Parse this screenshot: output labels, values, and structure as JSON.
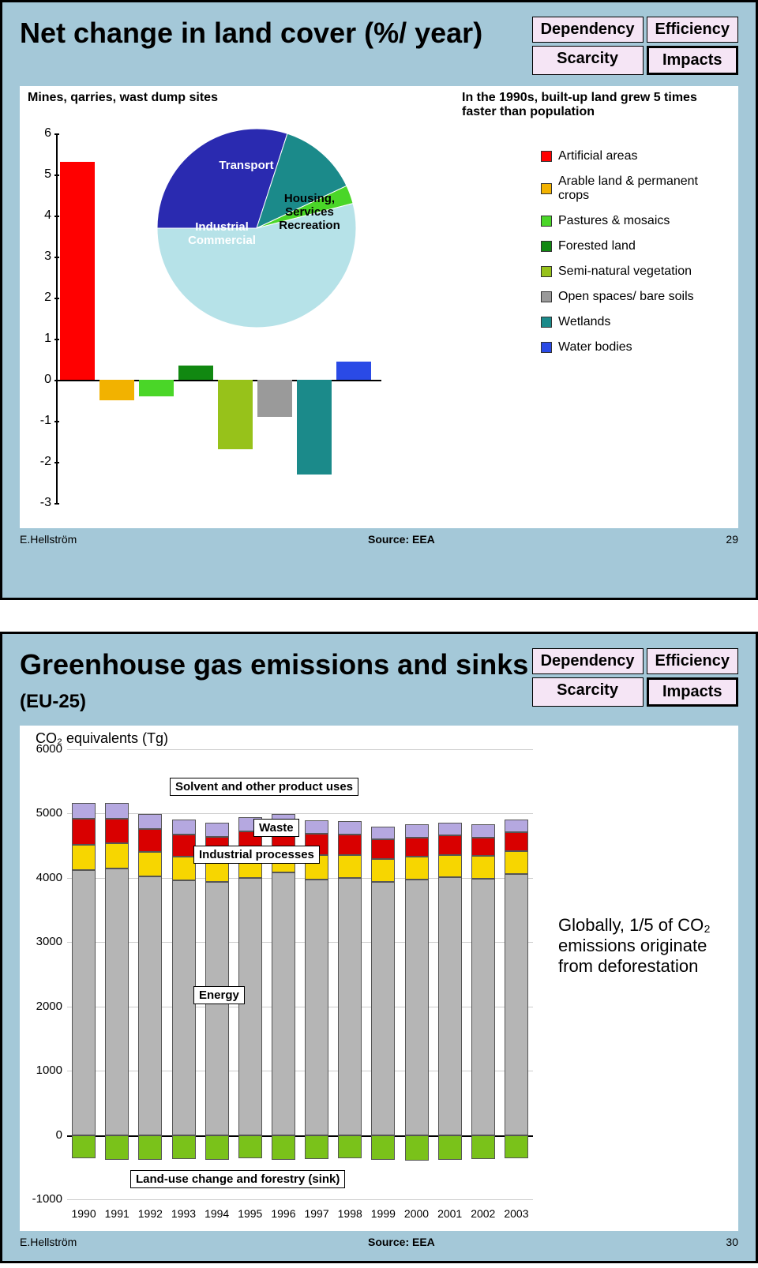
{
  "slide1": {
    "title": "Net change in land cover (%/ year)",
    "matrix": {
      "topLeft": "Dependency",
      "topRight": "Efficiency",
      "bottomLeft": "Scarcity",
      "bottomRight": "Impacts"
    },
    "topLeftLabel": "Mines, qarries, wast dump sites",
    "topRightLabel": "In the 1990s, built-up land grew 5 times faster than population",
    "bar_chart": {
      "ymin": -3,
      "ymax": 6,
      "ystep": 1,
      "categories": [
        "Artificial areas",
        "Arable land & permanent crops",
        "Pastures & mosaics",
        "Forested land",
        "Semi-natural vegetation",
        "Open spaces/ bare soils",
        "Wetlands",
        "Water bodies"
      ],
      "values": [
        5.3,
        -0.5,
        -0.4,
        0.35,
        -1.7,
        -0.9,
        -2.3,
        0.45
      ],
      "colors": [
        "#ff0000",
        "#f2b200",
        "#4ad628",
        "#118811",
        "#97c21a",
        "#9a9a9a",
        "#1b8a8a",
        "#2a4ae6"
      ]
    },
    "legend": [
      {
        "label": "Artificial areas",
        "color": "#ff0000"
      },
      {
        "label": "Arable land & permanent crops",
        "color": "#f2b200"
      },
      {
        "label": "Pastures & mosaics",
        "color": "#4ad628"
      },
      {
        "label": "Forested land",
        "color": "#118811"
      },
      {
        "label": "Semi-natural vegetation",
        "color": "#97c21a"
      },
      {
        "label": "Open spaces/ bare soils",
        "color": "#9a9a9a"
      },
      {
        "label": "Wetlands",
        "color": "#1b8a8a"
      },
      {
        "label": "Water bodies",
        "color": "#2a4ae6"
      }
    ],
    "pie": {
      "slices": [
        {
          "label": "Industrial Commercial",
          "value": 30,
          "color": "#2a2ab0"
        },
        {
          "label": "Transport",
          "value": 13,
          "color": "#1b8a8a"
        },
        {
          "label": "",
          "value": 3,
          "color": "#4ad628"
        },
        {
          "label": "Housing, Services Recreation",
          "value": 54,
          "color": "#b6e2e8"
        }
      ]
    },
    "source": "Source: EEA",
    "author": "E.Hellström",
    "page": "29"
  },
  "slide2": {
    "title": "Greenhouse gas emissions and sinks",
    "titleSuffix": "(EU-25)",
    "matrix": {
      "topLeft": "Dependency",
      "topRight": "Efficiency",
      "bottomLeft": "Scarcity",
      "bottomRight": "Impacts"
    },
    "ytitle": "CO₂ equivalents (Tg)",
    "sideNote": "Globally, 1/5 of CO₂ emissions originate from deforestation",
    "ymin": -1000,
    "ymax": 6000,
    "ystep": 1000,
    "years": [
      "1990",
      "1991",
      "1992",
      "1993",
      "1994",
      "1995",
      "1996",
      "1997",
      "1998",
      "1999",
      "2000",
      "2001",
      "2002",
      "2003"
    ],
    "series": [
      {
        "name": "Energy",
        "color": "#b5b5b5",
        "values": [
          4120,
          4150,
          4020,
          3960,
          3940,
          4000,
          4080,
          3980,
          4000,
          3940,
          3970,
          4010,
          3990,
          4060
        ]
      },
      {
        "name": "Industrial processes",
        "color": "#f7d600",
        "values": [
          400,
          390,
          380,
          370,
          360,
          380,
          370,
          380,
          360,
          350,
          360,
          350,
          350,
          360
        ]
      },
      {
        "name": "Waste",
        "color": "#d90000",
        "values": [
          400,
          380,
          360,
          350,
          340,
          340,
          330,
          330,
          320,
          310,
          300,
          300,
          290,
          290
        ]
      },
      {
        "name": "Solvent and other product uses",
        "color": "#b5a8e0",
        "values": [
          250,
          240,
          230,
          230,
          220,
          220,
          210,
          210,
          200,
          200,
          200,
          200,
          200,
          200
        ]
      }
    ],
    "sink": {
      "name": "Land-use change and forestry (sink)",
      "color": "#7ac21a",
      "values": [
        -360,
        -380,
        -380,
        -370,
        -380,
        -360,
        -390,
        -370,
        -360,
        -390,
        -400,
        -380,
        -370,
        -360
      ]
    },
    "callouts": [
      {
        "label": "Solvent and other product uses"
      },
      {
        "label": "Waste"
      },
      {
        "label": "Industrial processes"
      },
      {
        "label": "Energy"
      },
      {
        "label": "Land-use change and forestry (sink)"
      }
    ],
    "source": "Source: EEA",
    "author": "E.Hellström",
    "page": "30"
  }
}
